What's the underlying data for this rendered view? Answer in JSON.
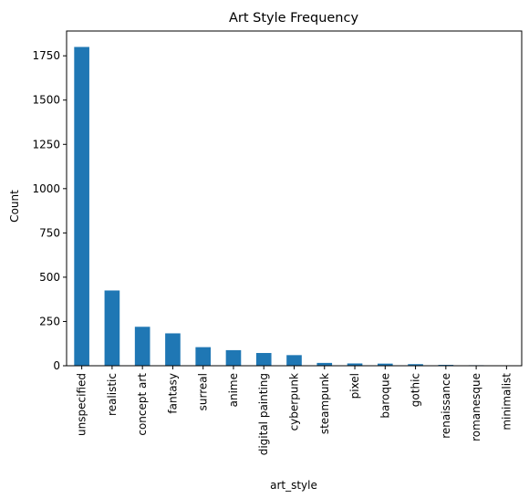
{
  "chart_data": {
    "type": "bar",
    "title": "Art Style Frequency",
    "xlabel": "art_style",
    "ylabel": "Count",
    "ylim": [
      0,
      1890
    ],
    "yticks": [
      0,
      250,
      500,
      750,
      1000,
      1250,
      1500,
      1750
    ],
    "grid": false,
    "bar_color": "#1f77b4",
    "categories": [
      "unspecified",
      "realistic",
      "concept art",
      "fantasy",
      "surreal",
      "anime",
      "digital painting",
      "cyberpunk",
      "steampunk",
      "pixel",
      "baroque",
      "gothic",
      "renaissance",
      "romanesque",
      "minimalist"
    ],
    "values": [
      1800,
      425,
      220,
      183,
      105,
      88,
      72,
      60,
      16,
      13,
      12,
      9,
      5,
      3,
      2
    ]
  }
}
